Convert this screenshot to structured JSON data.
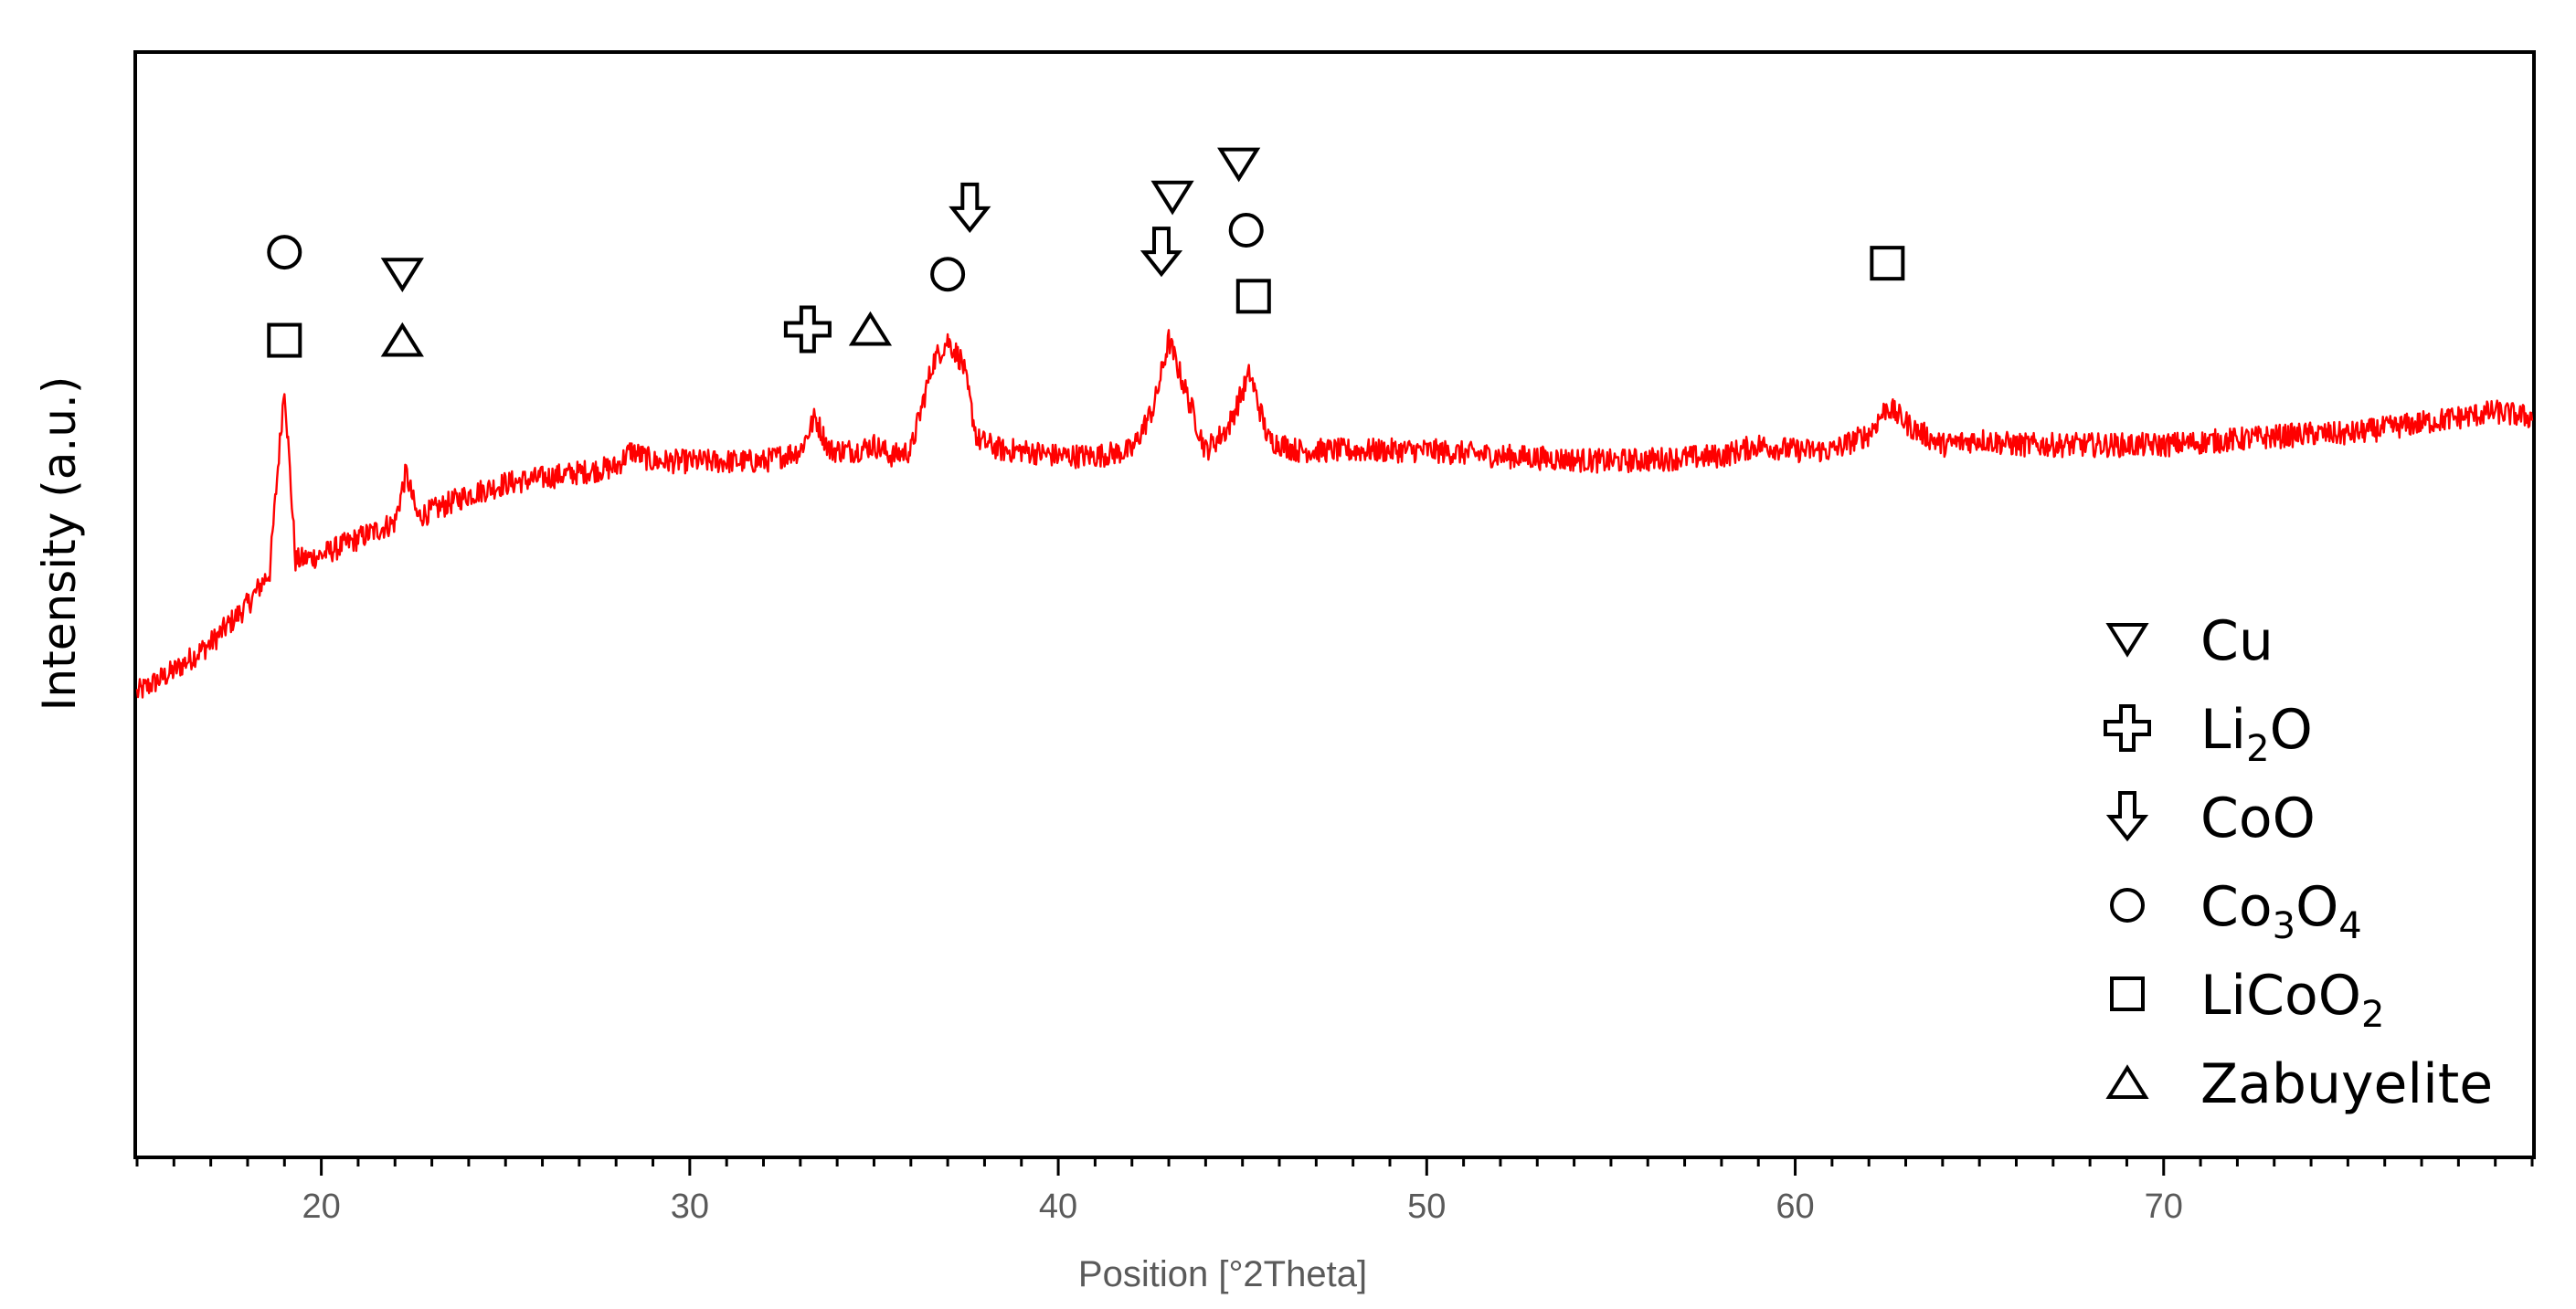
{
  "chart_data": {
    "type": "line",
    "xlabel": "Position [°2Theta]",
    "ylabel": "Intensity (a.u.)",
    "xlim": [
      15,
      80
    ],
    "ylim": [
      0,
      1
    ],
    "x_ticks": [
      20,
      30,
      40,
      50,
      60,
      70
    ],
    "y_ticks_labeled": false,
    "grid": false,
    "series": [
      {
        "color": "#ff0000",
        "x": [
          15,
          16,
          17,
          18,
          18.6,
          19.0,
          19.3,
          20,
          21,
          22,
          22.3,
          22.6,
          23,
          24,
          25,
          26,
          27,
          28,
          28.4,
          29,
          30,
          31,
          32,
          33,
          33.4,
          33.8,
          34.5,
          35,
          35.5,
          36,
          36.6,
          37.0,
          37.4,
          37.8,
          38.5,
          39,
          40,
          41,
          42,
          42.6,
          43.0,
          43.5,
          44,
          44.6,
          45.2,
          45.7,
          46.5,
          48,
          50,
          52,
          55,
          58,
          59,
          60,
          61,
          62,
          62.5,
          63.2,
          64,
          65,
          66,
          68,
          70,
          72,
          74,
          75,
          76,
          77,
          78,
          79,
          80
        ],
        "y": [
          0.42,
          0.44,
          0.465,
          0.5,
          0.53,
          0.7,
          0.54,
          0.545,
          0.56,
          0.575,
          0.62,
          0.58,
          0.585,
          0.6,
          0.61,
          0.615,
          0.62,
          0.625,
          0.64,
          0.63,
          0.63,
          0.63,
          0.63,
          0.64,
          0.67,
          0.64,
          0.64,
          0.645,
          0.635,
          0.64,
          0.72,
          0.74,
          0.72,
          0.65,
          0.64,
          0.64,
          0.635,
          0.635,
          0.64,
          0.68,
          0.74,
          0.69,
          0.64,
          0.66,
          0.71,
          0.65,
          0.64,
          0.64,
          0.64,
          0.635,
          0.63,
          0.635,
          0.645,
          0.64,
          0.64,
          0.655,
          0.68,
          0.66,
          0.645,
          0.65,
          0.645,
          0.645,
          0.645,
          0.65,
          0.655,
          0.655,
          0.66,
          0.665,
          0.67,
          0.675,
          0.67
        ]
      }
    ],
    "annotations": [
      {
        "phase": "Co3O4",
        "x": 19.0,
        "level": 0.82
      },
      {
        "phase": "LiCoO2",
        "x": 19.0,
        "level": 0.74
      },
      {
        "phase": "Cu",
        "x": 22.2,
        "level": 0.8
      },
      {
        "phase": "Zabuyelite",
        "x": 22.2,
        "level": 0.74
      },
      {
        "phase": "Li2O",
        "x": 33.2,
        "level": 0.75
      },
      {
        "phase": "Zabuyelite",
        "x": 34.9,
        "level": 0.75
      },
      {
        "phase": "Co3O4",
        "x": 37.0,
        "level": 0.8
      },
      {
        "phase": "CoO",
        "x": 37.6,
        "level": 0.86
      },
      {
        "phase": "CoO",
        "x": 42.8,
        "level": 0.82
      },
      {
        "phase": "Cu",
        "x": 43.1,
        "level": 0.87
      },
      {
        "phase": "Cu",
        "x": 44.9,
        "level": 0.9
      },
      {
        "phase": "Co3O4",
        "x": 45.1,
        "level": 0.84
      },
      {
        "phase": "LiCoO2",
        "x": 45.3,
        "level": 0.78
      },
      {
        "phase": "LiCoO2",
        "x": 62.5,
        "level": 0.81
      }
    ],
    "legend": {
      "placement": "bottom-right",
      "entries": [
        {
          "phase": "Cu",
          "text": "Cu",
          "sub": []
        },
        {
          "phase": "Li2O",
          "text": "Li",
          "sub": [
            "2",
            "O"
          ]
        },
        {
          "phase": "CoO",
          "text": "CoO",
          "sub": []
        },
        {
          "phase": "Co3O4",
          "text": "Co",
          "sub": [
            "3",
            "O",
            "4"
          ]
        },
        {
          "phase": "LiCoO2",
          "text": "LiCoO",
          "sub": [
            "2"
          ]
        },
        {
          "phase": "Zabuyelite",
          "text": "Zabuyelite",
          "sub": []
        }
      ]
    }
  }
}
